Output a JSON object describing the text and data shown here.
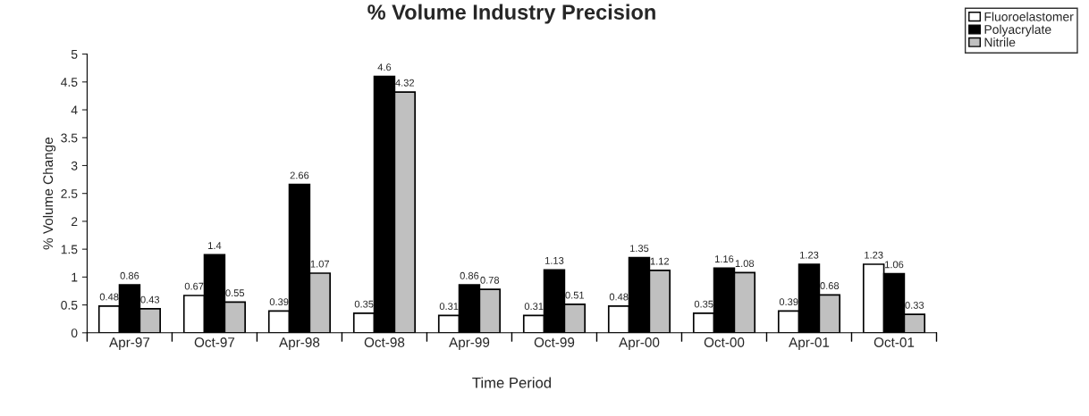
{
  "chart_data": {
    "type": "bar",
    "title": "% Volume Industry Precision",
    "xlabel": "Time Period",
    "ylabel": "% Volume Change",
    "categories": [
      "Apr-97",
      "Oct-97",
      "Apr-98",
      "Oct-98",
      "Apr-99",
      "Oct-99",
      "Apr-00",
      "Oct-00",
      "Apr-01",
      "Oct-01"
    ],
    "series": [
      {
        "name": "Fluoroelastomer",
        "color": "#ffffff",
        "values": [
          0.48,
          0.67,
          0.39,
          0.35,
          0.31,
          0.31,
          0.48,
          0.35,
          0.39,
          1.23
        ]
      },
      {
        "name": "Polyacrylate",
        "color": "#000000",
        "values": [
          0.86,
          1.4,
          2.66,
          4.6,
          0.86,
          1.13,
          1.35,
          1.16,
          1.23,
          1.06
        ]
      },
      {
        "name": "Nitrile",
        "color": "#c0c0c0",
        "values": [
          0.43,
          0.55,
          1.07,
          4.32,
          0.78,
          0.51,
          1.12,
          1.08,
          0.68,
          0.33
        ]
      }
    ],
    "ylim": [
      0,
      5
    ],
    "yticks": [
      0,
      0.5,
      1,
      1.5,
      2,
      2.5,
      3,
      3.5,
      4,
      4.5,
      5
    ],
    "data_labels": true,
    "legend": "top right",
    "grid": false
  }
}
